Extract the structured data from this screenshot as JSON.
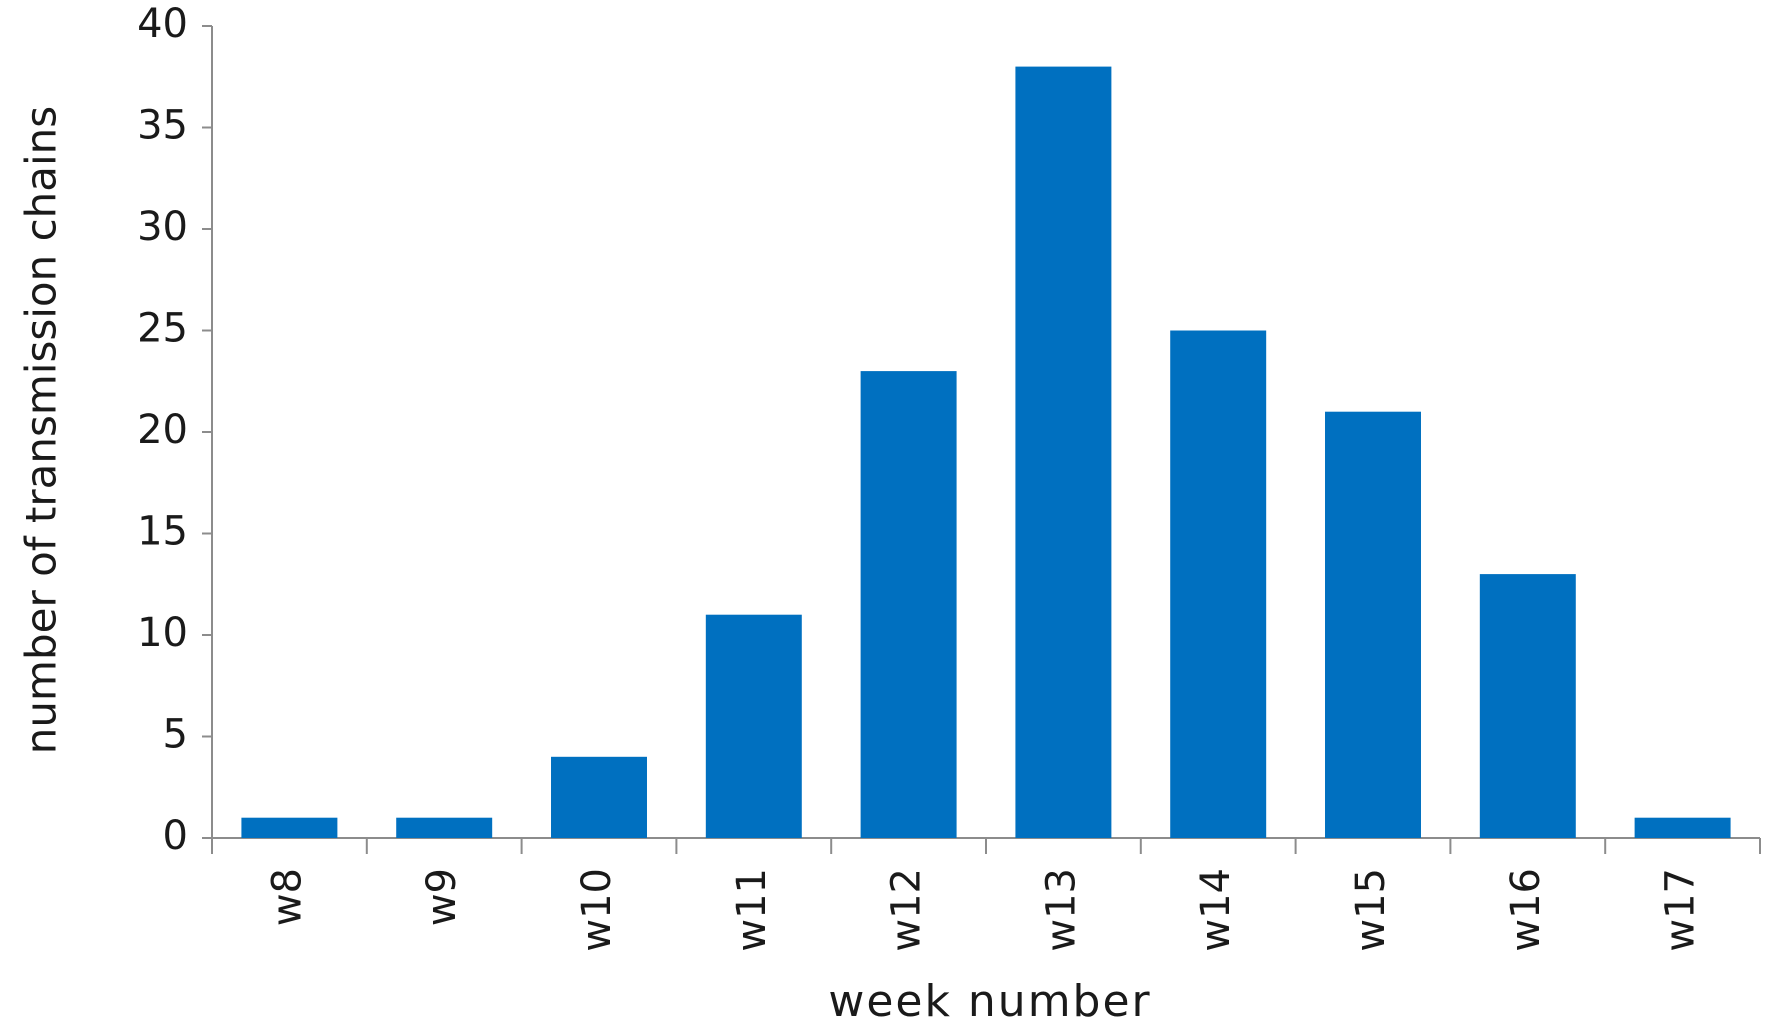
{
  "chart_data": {
    "type": "bar",
    "x_label": "week number",
    "y_label": "number of transmission  chains",
    "categories": [
      "w8",
      "w9",
      "w10",
      "w11",
      "w12",
      "w13",
      "w14",
      "w15",
      "w16",
      "w17"
    ],
    "values": [
      1,
      1,
      4,
      11,
      23,
      38,
      25,
      21,
      13,
      1
    ],
    "color": "#0070c0",
    "ylim": [
      0,
      40
    ],
    "yticks": [
      0,
      5,
      10,
      15,
      20,
      25,
      30,
      35,
      40
    ],
    "grid": false
  }
}
